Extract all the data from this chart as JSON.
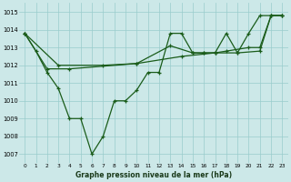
{
  "title": "Graphe pression niveau de la mer (hPa)",
  "background_color": "#cce8e8",
  "grid_color": "#99cccc",
  "line_color": "#1a5c1a",
  "xlim": [
    -0.5,
    23.5
  ],
  "ylim": [
    1006.5,
    1015.5
  ],
  "yticks": [
    1007,
    1008,
    1009,
    1010,
    1011,
    1012,
    1013,
    1014,
    1015
  ],
  "xticks": [
    0,
    1,
    2,
    3,
    4,
    5,
    6,
    7,
    8,
    9,
    10,
    11,
    12,
    13,
    14,
    15,
    16,
    17,
    18,
    19,
    20,
    21,
    22,
    23
  ],
  "line1_x": [
    0,
    1,
    2,
    3,
    4,
    5,
    6,
    7,
    8,
    9,
    10,
    11,
    12,
    13,
    14,
    15,
    16,
    17,
    18,
    19,
    20,
    21,
    22,
    23
  ],
  "line1_y": [
    1013.8,
    1012.8,
    1011.6,
    1010.7,
    1009.0,
    1009.0,
    1007.0,
    1008.0,
    1010.0,
    1010.0,
    1010.6,
    1011.6,
    1011.6,
    1013.8,
    1013.8,
    1012.7,
    1012.7,
    1012.7,
    1013.8,
    1012.7,
    1013.8,
    1014.8,
    1014.8,
    1014.8
  ],
  "line2_x": [
    0,
    2,
    4,
    10,
    14,
    17,
    19,
    21,
    22,
    23
  ],
  "line2_y": [
    1013.8,
    1011.8,
    1011.8,
    1012.1,
    1012.5,
    1012.7,
    1012.7,
    1012.8,
    1014.8,
    1014.8
  ],
  "line3_x": [
    0,
    3,
    7,
    10,
    13,
    15,
    16,
    17,
    18,
    20,
    21,
    22,
    23
  ],
  "line3_y": [
    1013.8,
    1012.0,
    1012.0,
    1012.1,
    1013.1,
    1012.7,
    1012.7,
    1012.7,
    1012.8,
    1013.0,
    1013.0,
    1014.8,
    1014.8
  ]
}
